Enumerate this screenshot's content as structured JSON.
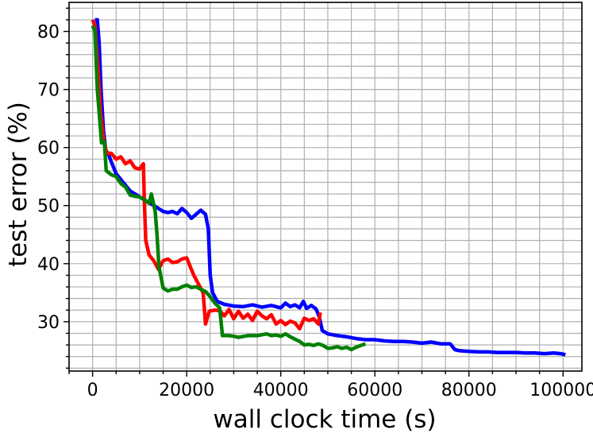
{
  "chart_data": {
    "type": "line",
    "title": "",
    "xlabel": "wall clock time (s)",
    "ylabel": "test error (%)",
    "xlim": [
      -5000,
      104000
    ],
    "ylim": [
      21.5,
      85
    ],
    "x_ticks": [
      0,
      20000,
      40000,
      60000,
      80000,
      100000
    ],
    "x_tick_labels": [
      "0",
      "20000",
      "40000",
      "60000",
      "80000",
      "100000"
    ],
    "y_ticks": [
      30,
      40,
      50,
      60,
      70,
      80
    ],
    "y_tick_labels": [
      "30",
      "40",
      "50",
      "60",
      "70",
      "80"
    ],
    "x_minor_step": 5000,
    "y_minor_step": 2,
    "grid": true,
    "legend": "none",
    "series": [
      {
        "color": "#0000ff",
        "points": [
          [
            500,
            82
          ],
          [
            1000,
            82
          ],
          [
            1400,
            78
          ],
          [
            1800,
            70
          ],
          [
            2300,
            63
          ],
          [
            2800,
            59.5
          ],
          [
            3300,
            59
          ],
          [
            4000,
            57.5
          ],
          [
            5000,
            55.5
          ],
          [
            6000,
            54.5
          ],
          [
            7000,
            53.5
          ],
          [
            8000,
            52.5
          ],
          [
            9000,
            52
          ],
          [
            10000,
            51.5
          ],
          [
            11000,
            51
          ],
          [
            12000,
            50.5
          ],
          [
            13000,
            50
          ],
          [
            14000,
            49.5
          ],
          [
            15000,
            49
          ],
          [
            16000,
            48.8
          ],
          [
            17000,
            49
          ],
          [
            18000,
            48.6
          ],
          [
            19000,
            49.5
          ],
          [
            20000,
            48.8
          ],
          [
            21000,
            47.8
          ],
          [
            22000,
            48.5
          ],
          [
            23000,
            49.2
          ],
          [
            24000,
            48.5
          ],
          [
            24600,
            46
          ],
          [
            25000,
            38
          ],
          [
            25500,
            35
          ],
          [
            26500,
            33.5
          ],
          [
            28000,
            33
          ],
          [
            30000,
            32.7
          ],
          [
            32000,
            32.6
          ],
          [
            34000,
            32.9
          ],
          [
            36000,
            32.5
          ],
          [
            38000,
            32.8
          ],
          [
            40000,
            32.4
          ],
          [
            41000,
            33.2
          ],
          [
            42000,
            32.6
          ],
          [
            43000,
            32.9
          ],
          [
            44000,
            32.4
          ],
          [
            44800,
            33.5
          ],
          [
            45500,
            32.3
          ],
          [
            46500,
            32.8
          ],
          [
            47500,
            32.2
          ],
          [
            48200,
            30.8
          ],
          [
            48800,
            28.5
          ],
          [
            50000,
            27.9
          ],
          [
            52000,
            27.6
          ],
          [
            54000,
            27.4
          ],
          [
            56000,
            27.1
          ],
          [
            58000,
            26.9
          ],
          [
            60000,
            26.9
          ],
          [
            62000,
            26.7
          ],
          [
            64000,
            26.6
          ],
          [
            66000,
            26.6
          ],
          [
            68000,
            26.5
          ],
          [
            70000,
            26.3
          ],
          [
            72000,
            26.5
          ],
          [
            74000,
            26.2
          ],
          [
            76000,
            26.2
          ],
          [
            77000,
            25.2
          ],
          [
            78000,
            25
          ],
          [
            80000,
            24.9
          ],
          [
            82000,
            24.8
          ],
          [
            84000,
            24.8
          ],
          [
            86000,
            24.7
          ],
          [
            88000,
            24.7
          ],
          [
            90000,
            24.7
          ],
          [
            92000,
            24.6
          ],
          [
            94000,
            24.6
          ],
          [
            96000,
            24.5
          ],
          [
            98000,
            24.6
          ],
          [
            99500,
            24.5
          ],
          [
            100500,
            24.3
          ]
        ]
      },
      {
        "color": "#ff0000",
        "points": [
          [
            0,
            82
          ],
          [
            500,
            81
          ],
          [
            1200,
            73
          ],
          [
            1700,
            66
          ],
          [
            2300,
            61.5
          ],
          [
            3000,
            59
          ],
          [
            4000,
            59
          ],
          [
            5000,
            58
          ],
          [
            6000,
            58.4
          ],
          [
            7000,
            57.2
          ],
          [
            8000,
            57.7
          ],
          [
            9000,
            56.5
          ],
          [
            10000,
            56.3
          ],
          [
            10800,
            57.2
          ],
          [
            11000,
            51
          ],
          [
            11300,
            44
          ],
          [
            12000,
            41.5
          ],
          [
            13000,
            40.5
          ],
          [
            14000,
            39
          ],
          [
            15000,
            40.5
          ],
          [
            16000,
            40.8
          ],
          [
            17000,
            40.2
          ],
          [
            18000,
            40.3
          ],
          [
            19000,
            40.8
          ],
          [
            20000,
            41
          ],
          [
            20500,
            40
          ],
          [
            21500,
            38
          ],
          [
            22500,
            36.5
          ],
          [
            23500,
            35
          ],
          [
            24000,
            29.6
          ],
          [
            24800,
            31.8
          ],
          [
            26000,
            32
          ],
          [
            27000,
            31.9
          ],
          [
            28000,
            31
          ],
          [
            29000,
            32.1
          ],
          [
            30000,
            30.5
          ],
          [
            31000,
            31.8
          ],
          [
            32000,
            30.6
          ],
          [
            33000,
            31.3
          ],
          [
            34000,
            30.2
          ],
          [
            35000,
            31.8
          ],
          [
            36000,
            31
          ],
          [
            37000,
            30.5
          ],
          [
            38000,
            31.2
          ],
          [
            39000,
            29.6
          ],
          [
            40000,
            30.2
          ],
          [
            41000,
            29.5
          ],
          [
            42000,
            30.1
          ],
          [
            43000,
            29.8
          ],
          [
            44000,
            28.8
          ],
          [
            45000,
            30.6
          ],
          [
            46000,
            30.2
          ],
          [
            47000,
            30.5
          ],
          [
            48000,
            29.6
          ],
          [
            48400,
            31.6
          ]
        ]
      },
      {
        "color": "#008000",
        "points": [
          [
            0,
            81
          ],
          [
            500,
            80
          ],
          [
            1000,
            70
          ],
          [
            1500,
            65
          ],
          [
            1900,
            60.8
          ],
          [
            2500,
            61
          ],
          [
            2900,
            56
          ],
          [
            4000,
            55.3
          ],
          [
            5000,
            55
          ],
          [
            6000,
            53.8
          ],
          [
            7000,
            53.2
          ],
          [
            8000,
            51.8
          ],
          [
            9000,
            51.6
          ],
          [
            10000,
            51.5
          ],
          [
            11000,
            51
          ],
          [
            12000,
            50.4
          ],
          [
            12500,
            52
          ],
          [
            13300,
            49
          ],
          [
            13700,
            45
          ],
          [
            14100,
            39.5
          ],
          [
            15000,
            35.8
          ],
          [
            16000,
            35.3
          ],
          [
            17000,
            35.6
          ],
          [
            18000,
            35.6
          ],
          [
            19000,
            36
          ],
          [
            20000,
            36.3
          ],
          [
            21000,
            35.9
          ],
          [
            22000,
            36
          ],
          [
            23000,
            35.6
          ],
          [
            24000,
            35.2
          ],
          [
            25000,
            34.3
          ],
          [
            26000,
            33.2
          ],
          [
            27000,
            32.4
          ],
          [
            27600,
            27.6
          ],
          [
            29000,
            27.6
          ],
          [
            30000,
            27.5
          ],
          [
            31000,
            27.3
          ],
          [
            33000,
            27.6
          ],
          [
            35000,
            27.6
          ],
          [
            37000,
            27.9
          ],
          [
            38000,
            27.6
          ],
          [
            39000,
            27.7
          ],
          [
            40000,
            27.5
          ],
          [
            41000,
            27.9
          ],
          [
            42000,
            27.4
          ],
          [
            43000,
            27
          ],
          [
            44000,
            26.6
          ],
          [
            45000,
            26
          ],
          [
            46000,
            26.1
          ],
          [
            47000,
            25.9
          ],
          [
            48000,
            26.2
          ],
          [
            49000,
            25.9
          ],
          [
            50000,
            25.4
          ],
          [
            51000,
            25.5
          ],
          [
            52000,
            25.7
          ],
          [
            53000,
            25.4
          ],
          [
            54000,
            25.6
          ],
          [
            55000,
            25.2
          ],
          [
            56000,
            25.6
          ],
          [
            57000,
            25.9
          ],
          [
            58000,
            26.2
          ]
        ]
      }
    ]
  }
}
